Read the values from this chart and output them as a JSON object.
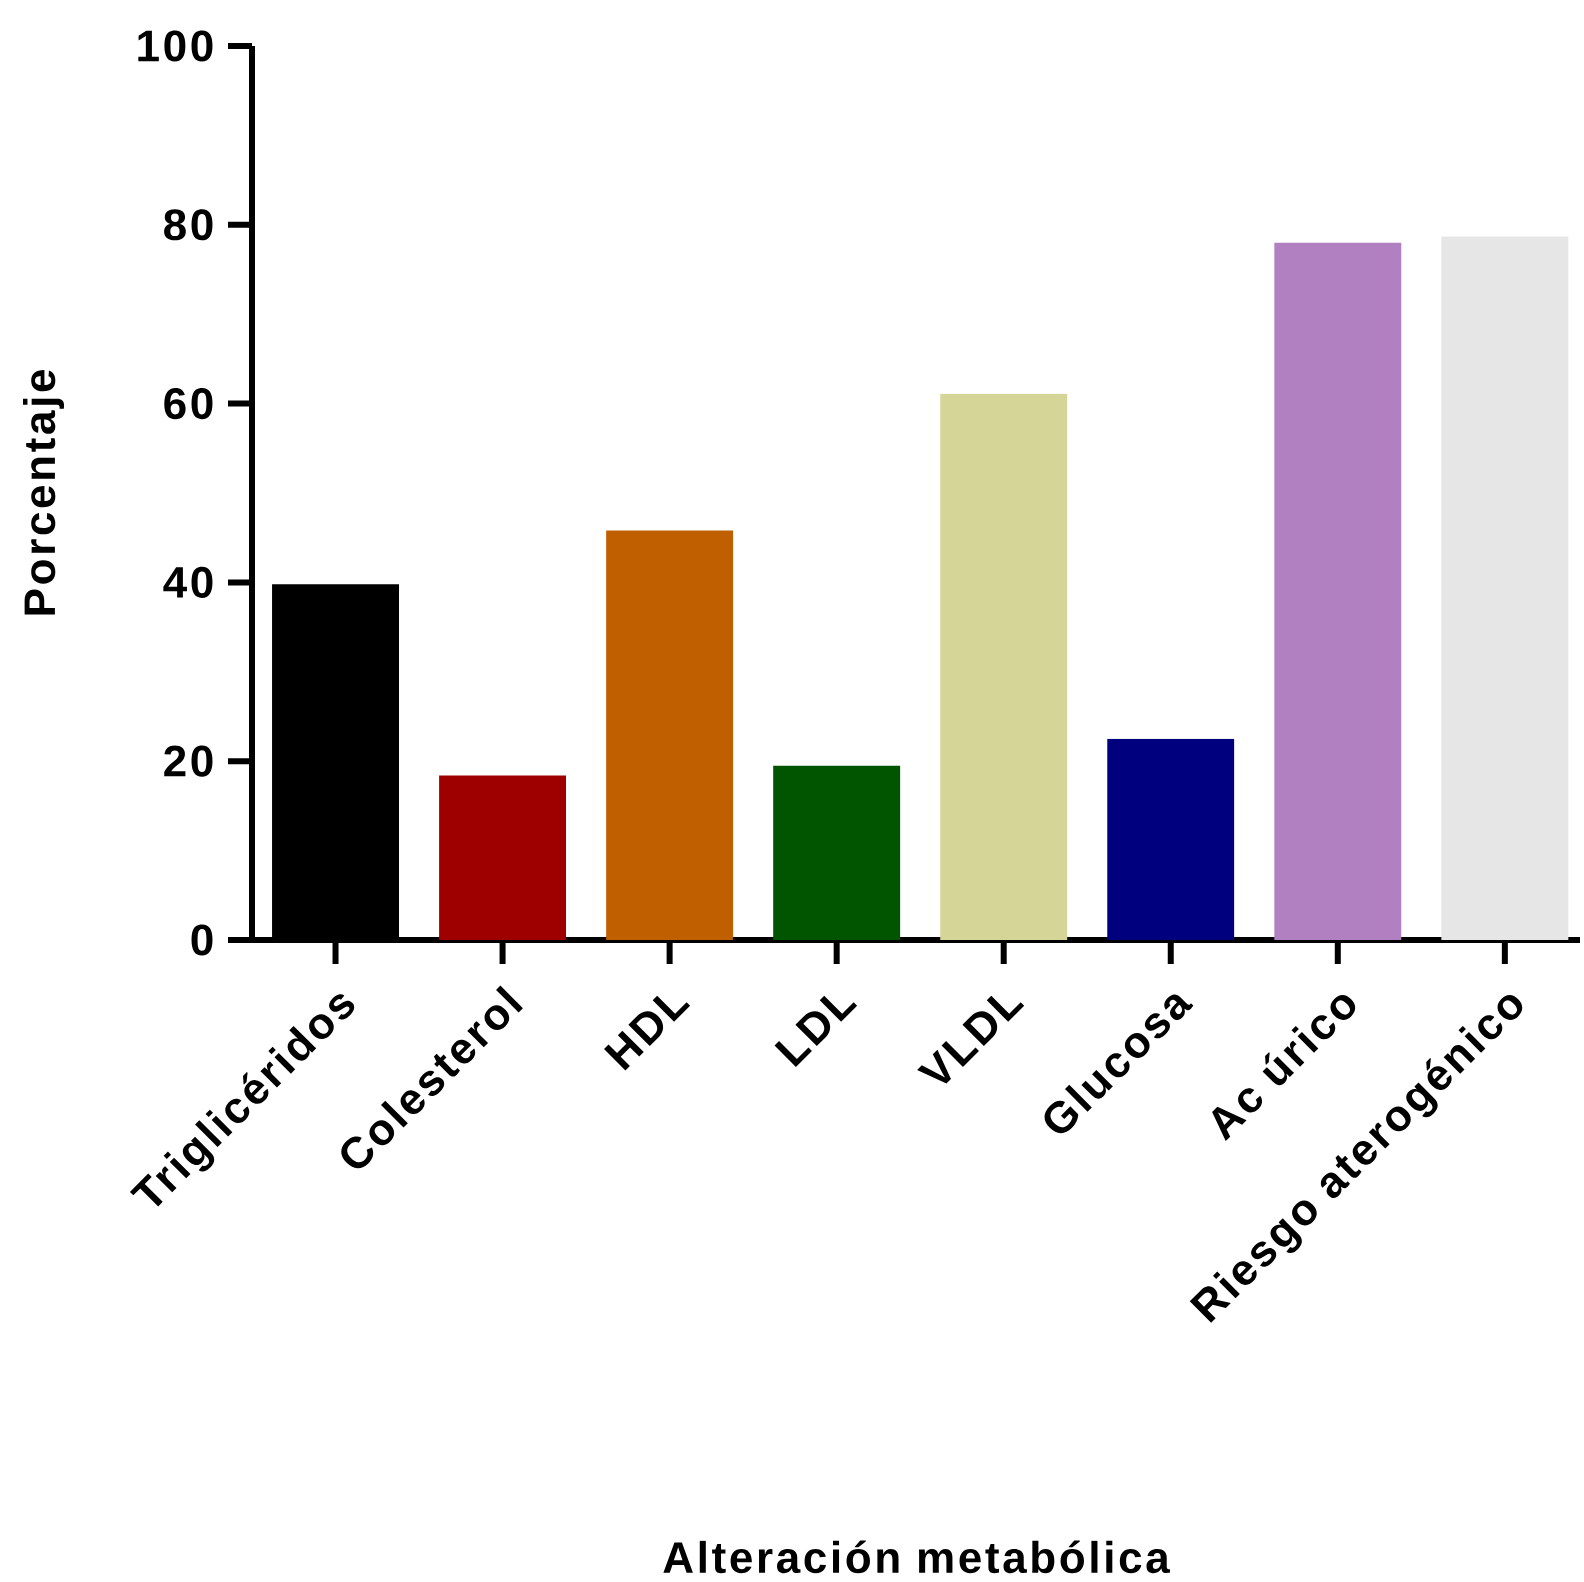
{
  "chart_data": {
    "type": "bar",
    "xlabel": "Alteración metabólica",
    "ylabel": "Porcentaje",
    "categories": [
      "Triglicéridos",
      "Colesterol",
      "HDL",
      "LDL",
      "VLDL",
      "Glucosa",
      "Ac úrico",
      "Riesgo aterogénico"
    ],
    "values": [
      39.8,
      18.4,
      45.8,
      19.5,
      61.1,
      22.5,
      78.0,
      78.7
    ],
    "colors": [
      "#000000",
      "#9e0000",
      "#c05f00",
      "#015501",
      "#d6d598",
      "#00007e",
      "#b080c0",
      "#e6e6e6"
    ],
    "ylim": [
      0,
      100
    ],
    "yticks": [
      0,
      20,
      40,
      60,
      80,
      100
    ],
    "grid": false
  }
}
